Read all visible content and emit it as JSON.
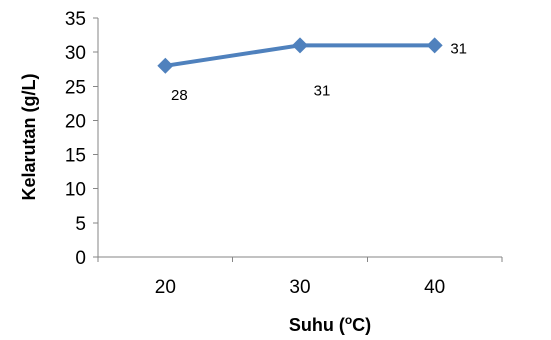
{
  "chart_data": {
    "type": "line",
    "title": "",
    "xlabel": {
      "base": "Suhu (",
      "sup": "o",
      "tail": "C)"
    },
    "ylabel": "Kelarutan (g/L)",
    "categories": [
      "20",
      "30",
      "40"
    ],
    "series": [
      {
        "values": [
          28,
          31,
          31
        ],
        "data_labels": [
          "28",
          "31",
          "31"
        ],
        "color": "#4f81bd",
        "marker": "diamond"
      }
    ],
    "ylim": [
      0,
      35
    ],
    "yticks": [
      0,
      5,
      10,
      15,
      20,
      25,
      30,
      35
    ],
    "grid": false,
    "legend": "none"
  }
}
